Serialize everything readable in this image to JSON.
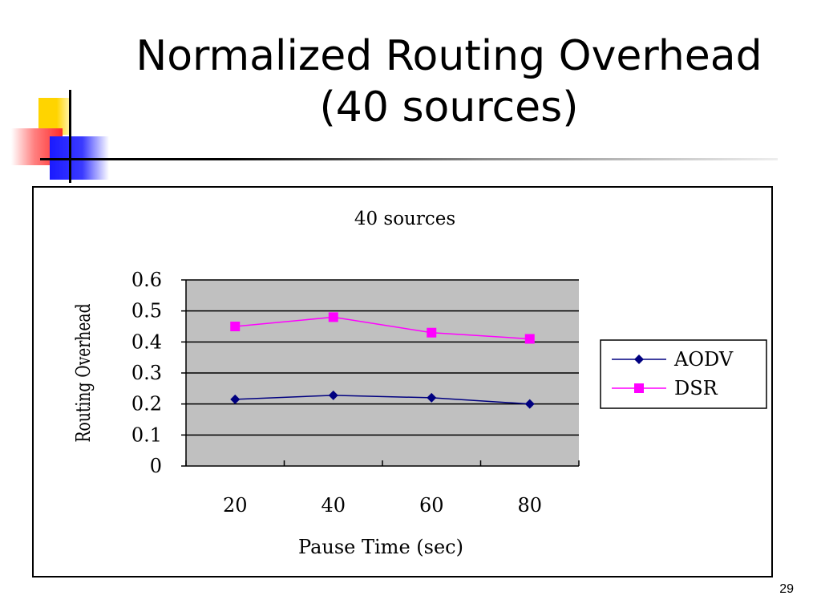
{
  "slide": {
    "title_line1": "Normalized Routing Overhead",
    "title_line2": "(40 sources)",
    "page_number": "29"
  },
  "colors": {
    "plot_background": "#c0c0c0",
    "aodv": "#000080",
    "dsr": "#ff00ff",
    "deco_yellow": "#ffd400",
    "deco_red": "#ff2a2a",
    "deco_blue": "#1a1aff"
  },
  "chart_data": {
    "type": "line",
    "title": "40 sources",
    "xlabel": "Pause Time (sec)",
    "ylabel": "Routing Overhead",
    "categories": [
      "20",
      "40",
      "60",
      "80"
    ],
    "ylim": [
      0,
      0.6
    ],
    "yticks": [
      "0",
      "0.1",
      "0.2",
      "0.3",
      "0.4",
      "0.5",
      "0.6"
    ],
    "grid": true,
    "legend_position": "right",
    "series": [
      {
        "name": "AODV",
        "marker": "diamond",
        "values": [
          0.215,
          0.228,
          0.22,
          0.2
        ]
      },
      {
        "name": "DSR",
        "marker": "square",
        "values": [
          0.45,
          0.48,
          0.43,
          0.41
        ]
      }
    ]
  }
}
